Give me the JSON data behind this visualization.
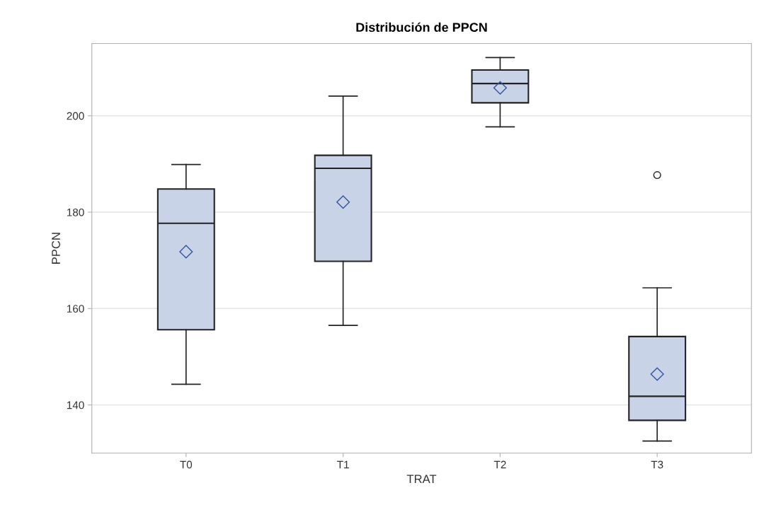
{
  "chart_data": {
    "type": "box",
    "title": "Distribución de PPCN",
    "xlabel": "TRAT",
    "ylabel": "PPCN",
    "categories": [
      "T0",
      "T1",
      "T2",
      "T3"
    ],
    "series": [
      {
        "color": "#c9d3e8",
        "boxes": [
          {
            "low": 144.3,
            "q1": 155.6,
            "median": 177.7,
            "q3": 184.8,
            "high": 189.9,
            "mean": 171.8
          },
          {
            "low": 156.5,
            "q1": 169.8,
            "median": 189.1,
            "q3": 191.8,
            "high": 204.1,
            "mean": 182.1
          },
          {
            "low": 197.7,
            "q1": 202.7,
            "median": 206.7,
            "q3": 209.5,
            "high": 212.1,
            "mean": 205.8
          },
          {
            "low": 132.5,
            "q1": 136.8,
            "median": 141.8,
            "q3": 154.2,
            "high": 164.3,
            "mean": 146.4,
            "outliers": [
              187.7
            ]
          }
        ]
      }
    ],
    "ylim": [
      130,
      215
    ],
    "yticks": [
      140,
      160,
      180,
      200
    ],
    "grid": "y",
    "legend": false
  }
}
